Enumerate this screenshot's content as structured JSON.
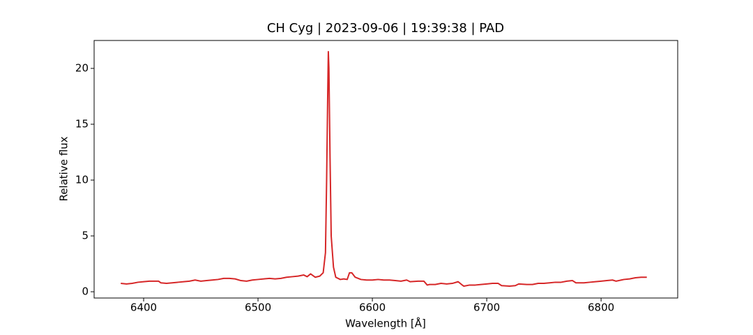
{
  "chart_data": {
    "type": "line",
    "title": "CH Cyg | 2023-09-06 | 19:39:38 | PAD",
    "x_label": "Wavelength [Å]",
    "y_label": "Relative flux",
    "xlim": [
      6356.7,
      6867
    ],
    "ylim": [
      -0.56,
      22.5
    ],
    "xticks": [
      6400,
      6500,
      6600,
      6700,
      6800
    ],
    "yticks": [
      0,
      5,
      10,
      15,
      20
    ],
    "series": [
      {
        "color": "#d62728",
        "x": [
          6380,
          6385,
          6390,
          6395,
          6400,
          6405,
          6410,
          6413,
          6415,
          6420,
          6425,
          6430,
          6435,
          6440,
          6445,
          6450,
          6455,
          6460,
          6465,
          6470,
          6475,
          6480,
          6485,
          6490,
          6495,
          6500,
          6505,
          6510,
          6515,
          6520,
          6525,
          6530,
          6535,
          6540,
          6543,
          6546,
          6550,
          6554,
          6557,
          6559,
          6560,
          6561,
          6561.5,
          6562,
          6563,
          6564,
          6566,
          6568,
          6572,
          6575,
          6578,
          6580,
          6582,
          6585,
          6590,
          6595,
          6600,
          6605,
          6610,
          6615,
          6620,
          6625,
          6630,
          6633,
          6640,
          6645,
          6648,
          6650,
          6655,
          6660,
          6665,
          6670,
          6675,
          6678,
          6680,
          6685,
          6690,
          6695,
          6700,
          6705,
          6710,
          6713,
          6720,
          6725,
          6728,
          6735,
          6740,
          6745,
          6750,
          6755,
          6760,
          6765,
          6770,
          6775,
          6778,
          6785,
          6790,
          6795,
          6800,
          6805,
          6810,
          6813,
          6820,
          6825,
          6830,
          6835,
          6840
        ],
        "values": [
          0.75,
          0.7,
          0.75,
          0.85,
          0.9,
          0.95,
          0.95,
          0.95,
          0.8,
          0.75,
          0.8,
          0.85,
          0.9,
          0.95,
          1.05,
          0.95,
          1.0,
          1.05,
          1.1,
          1.2,
          1.2,
          1.15,
          1.0,
          0.95,
          1.05,
          1.1,
          1.15,
          1.2,
          1.15,
          1.2,
          1.3,
          1.35,
          1.4,
          1.5,
          1.35,
          1.6,
          1.3,
          1.4,
          1.7,
          3.5,
          10,
          18,
          21.5,
          20,
          12,
          5,
          2.2,
          1.3,
          1.1,
          1.15,
          1.1,
          1.7,
          1.7,
          1.3,
          1.1,
          1.05,
          1.05,
          1.1,
          1.05,
          1.05,
          1.0,
          0.95,
          1.05,
          0.9,
          0.95,
          0.95,
          0.6,
          0.65,
          0.65,
          0.75,
          0.7,
          0.75,
          0.9,
          0.65,
          0.5,
          0.6,
          0.6,
          0.65,
          0.7,
          0.75,
          0.75,
          0.55,
          0.5,
          0.55,
          0.7,
          0.65,
          0.65,
          0.75,
          0.75,
          0.8,
          0.85,
          0.85,
          0.95,
          1.0,
          0.8,
          0.8,
          0.85,
          0.9,
          0.95,
          1.0,
          1.05,
          0.95,
          1.1,
          1.15,
          1.25,
          1.3,
          1.3
        ]
      }
    ]
  }
}
